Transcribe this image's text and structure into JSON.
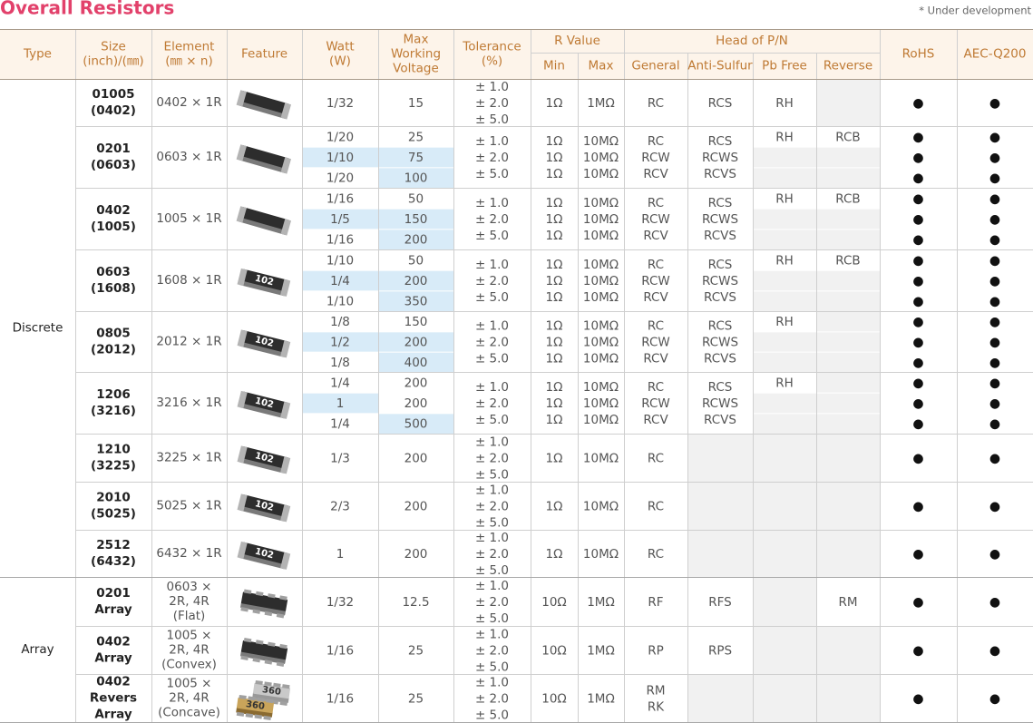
{
  "header": {
    "title": "Overall Resistors",
    "note": "* Under development"
  },
  "table": {
    "columns": {
      "type": "Type",
      "size": [
        "Size",
        "(inch)/(㎜)"
      ],
      "element": [
        "Element",
        "(㎜ × n)"
      ],
      "feature": "Feature",
      "watt": [
        "Watt",
        "(W)"
      ],
      "max_voltage": [
        "Max",
        "Working",
        "Voltage"
      ],
      "tolerance": [
        "Tolerance",
        "(%)"
      ],
      "r_value": "R Value",
      "min": "Min",
      "max": "Max",
      "head": "Head of P/N",
      "general": "General",
      "anti_sulfur": "Anti-Sulfur",
      "pb_free": "Pb Free",
      "reverse": "Reverse",
      "rohs": "RoHS",
      "aec": "AEC-Q200"
    },
    "groups": [
      {
        "type": "Discrete",
        "rows": [
          {
            "size": [
              "01005",
              "(0402)"
            ],
            "element": [
              "0402 × 1R"
            ],
            "watt": [
              "1/32"
            ],
            "max_voltage": [
              "15"
            ],
            "tolerance": [
              "± 1.0",
              "± 2.0",
              "± 5.0"
            ],
            "min": [
              "1Ω"
            ],
            "max": [
              "1MΩ"
            ],
            "general": [
              "RC"
            ],
            "anti_sulfur": [
              "RCS"
            ],
            "pb_free": [
              "RH"
            ],
            "reverse": [
              null
            ],
            "rohs": [
              "●"
            ],
            "aec": [
              "●"
            ]
          },
          {
            "size": [
              "0201",
              "(0603)"
            ],
            "element": [
              "0603 × 1R"
            ],
            "watt": [
              "1/20",
              {
                "text": "1/10",
                "highlight": true
              },
              "1/20"
            ],
            "max_voltage": [
              "25",
              {
                "text": "75",
                "highlight": true
              },
              {
                "text": "100",
                "highlight": true
              }
            ],
            "tolerance": [
              "± 1.0",
              "± 2.0",
              "± 5.0"
            ],
            "min": [
              "1Ω",
              "1Ω",
              "1Ω"
            ],
            "max": [
              "10MΩ",
              "10MΩ",
              "10MΩ"
            ],
            "general": [
              "RC",
              "RCW",
              "RCV"
            ],
            "anti_sulfur": [
              "RCS",
              "RCWS",
              "RCVS"
            ],
            "pb_free": [
              "RH",
              null,
              null
            ],
            "reverse": [
              "RCB",
              null,
              null
            ],
            "rohs": [
              "●",
              "●",
              "●"
            ],
            "aec": [
              "●",
              "●",
              "●"
            ]
          },
          {
            "size": [
              "0402",
              "(1005)"
            ],
            "element": [
              "1005 × 1R"
            ],
            "watt": [
              "1/16",
              {
                "text": "1/5",
                "highlight": true
              },
              "1/16"
            ],
            "max_voltage": [
              "50",
              {
                "text": "150",
                "highlight": true
              },
              {
                "text": "200",
                "highlight": true
              }
            ],
            "tolerance": [
              "± 1.0",
              "± 2.0",
              "± 5.0"
            ],
            "min": [
              "1Ω",
              "1Ω",
              "1Ω"
            ],
            "max": [
              "10MΩ",
              "10MΩ",
              "10MΩ"
            ],
            "general": [
              "RC",
              "RCW",
              "RCV"
            ],
            "anti_sulfur": [
              "RCS",
              "RCWS",
              "RCVS"
            ],
            "pb_free": [
              "RH",
              null,
              null
            ],
            "reverse": [
              "RCB",
              null,
              null
            ],
            "rohs": [
              "●",
              "●",
              "●"
            ],
            "aec": [
              "●",
              "●",
              "●"
            ]
          },
          {
            "size": [
              "0603",
              "(1608)"
            ],
            "element": [
              "1608 × 1R"
            ],
            "marking": "102",
            "watt": [
              "1/10",
              {
                "text": "1/4",
                "highlight": true
              },
              "1/10"
            ],
            "max_voltage": [
              "50",
              {
                "text": "200",
                "highlight": true
              },
              {
                "text": "350",
                "highlight": true
              }
            ],
            "tolerance": [
              "± 1.0",
              "± 2.0",
              "± 5.0"
            ],
            "min": [
              "1Ω",
              "1Ω",
              "1Ω"
            ],
            "max": [
              "10MΩ",
              "10MΩ",
              "10MΩ"
            ],
            "general": [
              "RC",
              "RCW",
              "RCV"
            ],
            "anti_sulfur": [
              "RCS",
              "RCWS",
              "RCVS"
            ],
            "pb_free": [
              "RH",
              null,
              null
            ],
            "reverse": [
              "RCB",
              null,
              null
            ],
            "rohs": [
              "●",
              "●",
              "●"
            ],
            "aec": [
              "●",
              "●",
              "●"
            ]
          },
          {
            "size": [
              "0805",
              "(2012)"
            ],
            "element": [
              "2012 × 1R"
            ],
            "marking": "102",
            "watt": [
              "1/8",
              {
                "text": "1/2",
                "highlight": true
              },
              "1/8"
            ],
            "max_voltage": [
              "150",
              {
                "text": "200",
                "highlight": true
              },
              {
                "text": "400",
                "highlight": true
              }
            ],
            "tolerance": [
              "± 1.0",
              "± 2.0",
              "± 5.0"
            ],
            "min": [
              "1Ω",
              "1Ω",
              "1Ω"
            ],
            "max": [
              "10MΩ",
              "10MΩ",
              "10MΩ"
            ],
            "general": [
              "RC",
              "RCW",
              "RCV"
            ],
            "anti_sulfur": [
              "RCS",
              "RCWS",
              "RCVS"
            ],
            "pb_free": [
              "RH",
              null,
              null
            ],
            "reverse": [
              null,
              null,
              null
            ],
            "rohs": [
              "●",
              "●",
              "●"
            ],
            "aec": [
              "●",
              "●",
              "●"
            ]
          },
          {
            "size": [
              "1206",
              "(3216)"
            ],
            "element": [
              "3216 × 1R"
            ],
            "marking": "102",
            "watt": [
              "1/4",
              {
                "text": "1",
                "highlight": true
              },
              "1/4"
            ],
            "max_voltage": [
              "200",
              "200",
              {
                "text": "500",
                "highlight": true
              }
            ],
            "tolerance": [
              "± 1.0",
              "± 2.0",
              "± 5.0"
            ],
            "min": [
              "1Ω",
              "1Ω",
              "1Ω"
            ],
            "max": [
              "10MΩ",
              "10MΩ",
              "10MΩ"
            ],
            "general": [
              "RC",
              "RCW",
              "RCV"
            ],
            "anti_sulfur": [
              "RCS",
              "RCWS",
              "RCVS"
            ],
            "pb_free": [
              "RH",
              null,
              null
            ],
            "reverse": [
              null,
              null,
              null
            ],
            "rohs": [
              "●",
              "●",
              "●"
            ],
            "aec": [
              "●",
              "●",
              "●"
            ]
          },
          {
            "size": [
              "1210",
              "(3225)"
            ],
            "element": [
              "3225 × 1R"
            ],
            "marking": "102",
            "watt": [
              "1/3"
            ],
            "max_voltage": [
              "200"
            ],
            "tolerance": [
              "± 1.0",
              "± 2.0",
              "± 5.0"
            ],
            "min": [
              "1Ω"
            ],
            "max": [
              "10MΩ"
            ],
            "general": [
              "RC"
            ],
            "anti_sulfur": null,
            "pb_free": [
              null
            ],
            "reverse": [
              null
            ],
            "rohs": [
              "●"
            ],
            "aec": [
              "●"
            ]
          },
          {
            "size": [
              "2010",
              "(5025)"
            ],
            "element": [
              "5025 × 1R"
            ],
            "marking": "102",
            "watt": [
              "2/3"
            ],
            "max_voltage": [
              "200"
            ],
            "tolerance": [
              "± 1.0",
              "± 2.0",
              "± 5.0"
            ],
            "min": [
              "1Ω"
            ],
            "max": [
              "10MΩ"
            ],
            "general": [
              "RC"
            ],
            "anti_sulfur": null,
            "pb_free": [
              null
            ],
            "reverse": [
              null
            ],
            "rohs": [
              "●"
            ],
            "aec": [
              "●"
            ]
          },
          {
            "size": [
              "2512",
              "(6432)"
            ],
            "element": [
              "6432 × 1R"
            ],
            "marking": "102",
            "watt": [
              "1"
            ],
            "max_voltage": [
              "200"
            ],
            "tolerance": [
              "± 1.0",
              "± 2.0",
              "± 5.0"
            ],
            "min": [
              "1Ω"
            ],
            "max": [
              "10MΩ"
            ],
            "general": [
              "RC"
            ],
            "anti_sulfur": null,
            "pb_free": [
              null
            ],
            "reverse": [
              null
            ],
            "rohs": [
              "●"
            ],
            "aec": [
              "●"
            ]
          }
        ]
      },
      {
        "type": "Array",
        "rows": [
          {
            "size": [
              "0201",
              "Array"
            ],
            "element": [
              "0603 ×",
              "2R, 4R",
              "(Flat)"
            ],
            "watt": [
              "1/32"
            ],
            "max_voltage": [
              "12.5"
            ],
            "tolerance": [
              "± 1.0",
              "± 2.0",
              "± 5.0"
            ],
            "min": [
              "10Ω"
            ],
            "max": [
              "1MΩ"
            ],
            "general": [
              "RF"
            ],
            "anti_sulfur": [
              "RFS"
            ],
            "pb_free": [
              null
            ],
            "reverse": [
              "RM"
            ],
            "rohs": [
              "●"
            ],
            "aec": [
              "●"
            ]
          },
          {
            "size": [
              "0402",
              "Array"
            ],
            "element": [
              "1005 ×",
              "2R, 4R",
              "(Convex)"
            ],
            "watt": [
              "1/16"
            ],
            "max_voltage": [
              "25"
            ],
            "tolerance": [
              "± 1.0",
              "± 2.0",
              "± 5.0"
            ],
            "min": [
              "10Ω"
            ],
            "max": [
              "1MΩ"
            ],
            "general": [
              "RP"
            ],
            "anti_sulfur": [
              "RPS"
            ],
            "pb_free": [
              null
            ],
            "reverse": [
              null
            ],
            "rohs": [
              "●"
            ],
            "aec": [
              "●"
            ]
          },
          {
            "size": [
              "0402",
              "Revers",
              "Array"
            ],
            "element": [
              "1005 ×",
              "2R, 4R",
              "(Concave)"
            ],
            "marking": "360",
            "watt": [
              "1/16"
            ],
            "max_voltage": [
              "25"
            ],
            "tolerance": [
              "± 1.0",
              "± 2.0",
              "± 5.0"
            ],
            "min": [
              "10Ω"
            ],
            "max": [
              "1MΩ"
            ],
            "general": [
              "RM",
              "RK"
            ],
            "anti_sulfur": null,
            "pb_free": [
              null
            ],
            "reverse": [
              null
            ],
            "rohs": [
              "●"
            ],
            "aec": [
              "●"
            ]
          }
        ]
      }
    ]
  }
}
